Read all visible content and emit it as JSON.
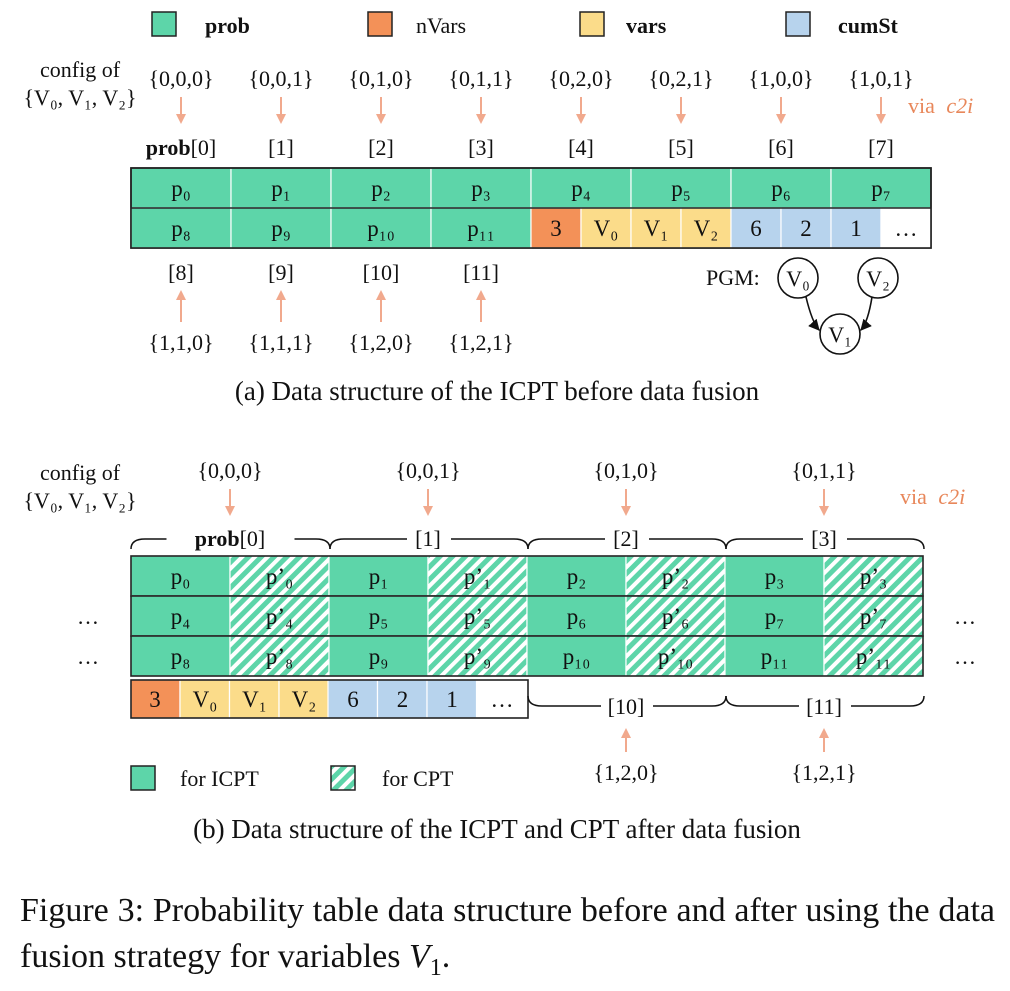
{
  "colors": {
    "prob": "#5dd5a9",
    "nVars": "#f39158",
    "vars": "#fbdc8a",
    "cumSt": "#b7d3ed",
    "arrow": "#f1a98d",
    "via": "#e8875a"
  },
  "legend_top": [
    "prob",
    "nVars",
    "vars",
    "cumSt"
  ],
  "panel_a": {
    "config_label_1": "config of",
    "config_label_2": "{V₀, V₁, V₂}",
    "via_label": "via",
    "via_func": "c2i",
    "configs_top": [
      "{0,0,0}",
      "{0,0,1}",
      "{0,1,0}",
      "{0,1,1}",
      "{0,2,0}",
      "{0,2,1}",
      "{1,0,0}",
      "{1,0,1}"
    ],
    "indices_top_first_bold": "prob",
    "indices_top_first_rest": "[0]",
    "indices_top": [
      "[1]",
      "[2]",
      "[3]",
      "[4]",
      "[5]",
      "[6]",
      "[7]"
    ],
    "row1": [
      "p₀",
      "p₁",
      "p₂",
      "p₃",
      "p₄",
      "p₅",
      "p₆",
      "p₇"
    ],
    "row2_prob": [
      "p₈",
      "p₉",
      "p₁₀",
      "p₁₁"
    ],
    "row2_nvars": "3",
    "row2_vars": [
      "V₀",
      "V₁",
      "V₂"
    ],
    "row2_cumst": [
      "6",
      "2",
      "1"
    ],
    "row2_more": "…",
    "indices_bottom": [
      "[8]",
      "[9]",
      "[10]",
      "[11]"
    ],
    "configs_bottom": [
      "{1,1,0}",
      "{1,1,1}",
      "{1,2,0}",
      "{1,2,1}"
    ],
    "pgm_label": "PGM:",
    "pgm_nodes": [
      "V₀",
      "V₂",
      "V₁"
    ],
    "caption": "(a) Data structure of the ICPT before data fusion"
  },
  "panel_b": {
    "config_label_1": "config of",
    "config_label_2": "{V₀, V₁, V₂}",
    "via_label": "via",
    "via_func": "c2i",
    "configs_top": [
      "{0,0,0}",
      "{0,0,1}",
      "{0,1,0}",
      "{0,1,1}"
    ],
    "indices_top_first_bold": "prob",
    "indices_top_first_rest": "[0]",
    "indices_top": [
      "[1]",
      "[2]",
      "[3]"
    ],
    "rows": [
      [
        "p₀",
        "p’₀",
        "p₁",
        "p’₁",
        "p₂",
        "p’₂",
        "p₃",
        "p’₃"
      ],
      [
        "p₄",
        "p’₄",
        "p₅",
        "p’₅",
        "p₆",
        "p’₆",
        "p₇",
        "p’₇"
      ],
      [
        "p₈",
        "p’₈",
        "p₉",
        "p’₉",
        "p₁₀",
        "p’₁₀",
        "p₁₁",
        "p’₁₁"
      ]
    ],
    "ellipsis": "…",
    "row4_nvars": "3",
    "row4_vars": [
      "V₀",
      "V₁",
      "V₂"
    ],
    "row4_cumst": [
      "6",
      "2",
      "1"
    ],
    "row4_more": "…",
    "indices_bottom": [
      "[10]",
      "[11]"
    ],
    "configs_bottom": [
      "{1,2,0}",
      "{1,2,1}"
    ],
    "legend_icpt": "for ICPT",
    "legend_cpt": "for CPT",
    "caption": "(b) Data structure of the ICPT and CPT after data fusion"
  },
  "figure_caption": {
    "prefix": "Figure 3: Probability table data structure before and after using the data fusion strategy for variables",
    "var": "V",
    "sub": "1",
    "suffix": "."
  }
}
